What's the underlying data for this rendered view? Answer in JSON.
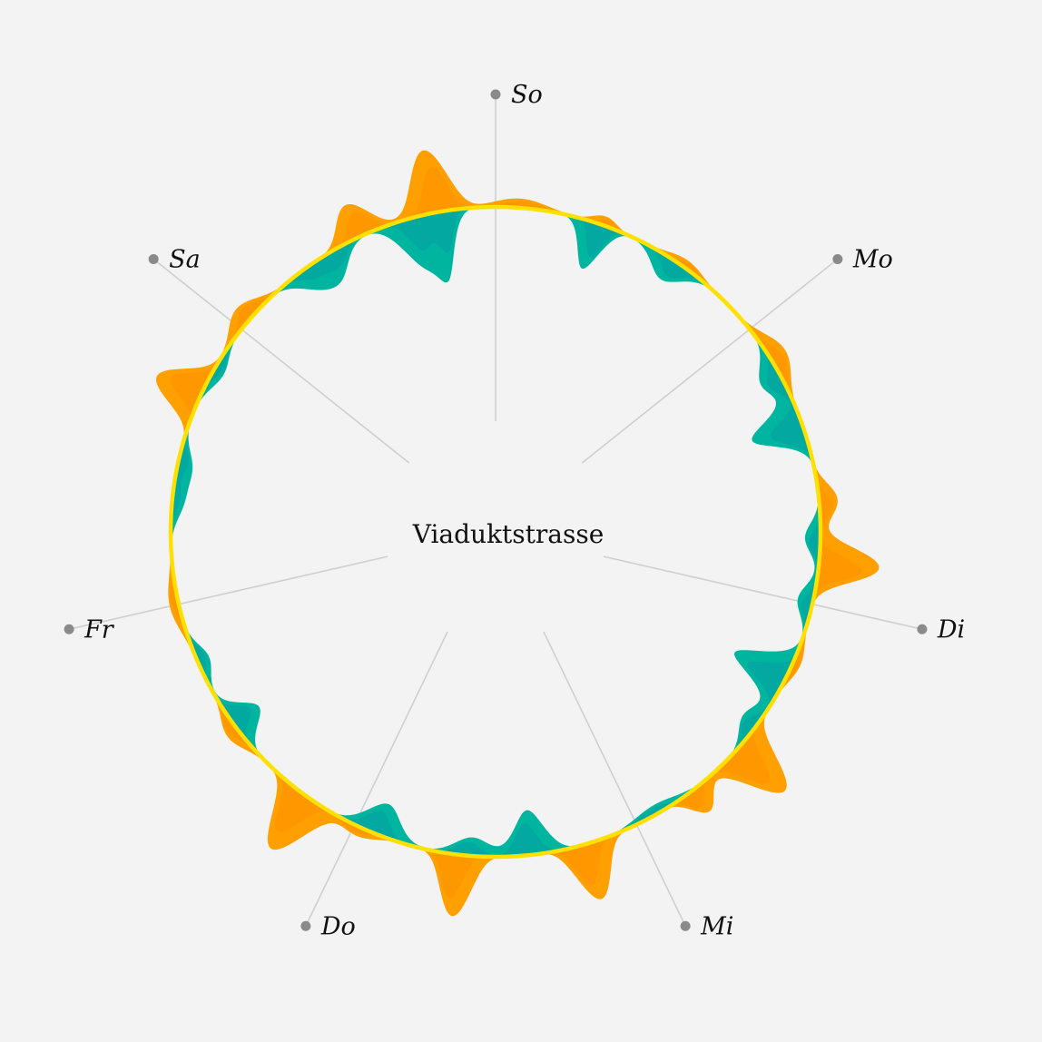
{
  "title": "Viaduktstrasse",
  "colors": {
    "background": "#f3f3f3",
    "ring": "#ffe000",
    "inbound": "#ff9f00",
    "inbound_shade": "#ff8a00",
    "outbound": "#00b5a0",
    "outbound_shade": "#0a8fa0",
    "spoke": "#cfcfcf",
    "dot": "#8a8a8a"
  },
  "chart_data": {
    "type": "area",
    "layout": "radial",
    "start": "top",
    "direction": "clockwise",
    "x_unit": "hour of week",
    "x_range": [
      0,
      168
    ],
    "days": [
      {
        "label": "So",
        "start_hour": 0
      },
      {
        "label": "Mo",
        "start_hour": 24
      },
      {
        "label": "Di",
        "start_hour": 48
      },
      {
        "label": "Mi",
        "start_hour": 72
      },
      {
        "label": "Do",
        "start_hour": 96
      },
      {
        "label": "Fr",
        "start_hour": 120
      },
      {
        "label": "Sa",
        "start_hour": 144
      }
    ],
    "series": [
      {
        "key": "outward",
        "peaks": [
          {
            "hour": 2.0,
            "value": 12,
            "width": 2.0
          },
          {
            "hour": 9.0,
            "value": 12,
            "width": 1.0
          },
          {
            "hour": 16.5,
            "value": 10,
            "width": 1.6
          },
          {
            "hour": 27.0,
            "value": 22,
            "width": 1.8
          },
          {
            "hour": 39.5,
            "value": 24,
            "width": 1.3
          },
          {
            "hour": 44.5,
            "value": 78,
            "width": 1.2
          },
          {
            "hour": 53.0,
            "value": 10,
            "width": 1.5
          },
          {
            "hour": 61.5,
            "value": 82,
            "width": 1.3
          },
          {
            "hour": 66.5,
            "value": 35,
            "width": 1.0
          },
          {
            "hour": 76.5,
            "value": 74,
            "width": 1.2
          },
          {
            "hour": 87.0,
            "value": 80,
            "width": 1.1
          },
          {
            "hour": 95.5,
            "value": 12,
            "width": 1.5
          },
          {
            "hour": 100.5,
            "value": 82,
            "width": 1.3
          },
          {
            "hour": 108.5,
            "value": 16,
            "width": 1.5
          },
          {
            "hour": 120.0,
            "value": 12,
            "width": 2.0
          },
          {
            "hour": 137.5,
            "value": 62,
            "width": 1.3
          },
          {
            "hour": 145.0,
            "value": 22,
            "width": 1.6
          },
          {
            "hour": 156.5,
            "value": 45,
            "width": 1.3
          },
          {
            "hour": 163.0,
            "value": 82,
            "width": 1.3
          }
        ]
      },
      {
        "key": "inward",
        "peaks": [
          {
            "hour": 8.5,
            "value": 62,
            "width": 1.0
          },
          {
            "hour": 15.5,
            "value": 30,
            "width": 1.5
          },
          {
            "hour": 28.5,
            "value": 28,
            "width": 1.5
          },
          {
            "hour": 32.5,
            "value": 48,
            "width": 1.1
          },
          {
            "hour": 33.6,
            "value": 28,
            "width": 1.1
          },
          {
            "hour": 42.5,
            "value": 20,
            "width": 1.3
          },
          {
            "hour": 47.8,
            "value": 20,
            "width": 1.3
          },
          {
            "hour": 54.5,
            "value": 74,
            "width": 1.2
          },
          {
            "hour": 59.0,
            "value": 22,
            "width": 1.4
          },
          {
            "hour": 70.0,
            "value": 12,
            "width": 2.0
          },
          {
            "hour": 81.0,
            "value": 58,
            "width": 1.3
          },
          {
            "hour": 86.0,
            "value": 24,
            "width": 1.5
          },
          {
            "hour": 94.0,
            "value": 42,
            "width": 1.5
          },
          {
            "hour": 109.0,
            "value": 40,
            "width": 1.2
          },
          {
            "hour": 115.0,
            "value": 16,
            "width": 1.3
          },
          {
            "hour": 128.5,
            "value": 14,
            "width": 1.5
          },
          {
            "hour": 131.5,
            "value": 18,
            "width": 1.5
          },
          {
            "hour": 140.0,
            "value": 14,
            "width": 1.5
          },
          {
            "hour": 151.0,
            "value": 20,
            "width": 1.3
          },
          {
            "hour": 152.5,
            "value": 18,
            "width": 1.3
          },
          {
            "hour": 153.8,
            "value": 22,
            "width": 1.3
          },
          {
            "hour": 161.0,
            "value": 62,
            "width": 1.4
          },
          {
            "hour": 163.2,
            "value": 70,
            "width": 1.0
          }
        ]
      }
    ]
  }
}
